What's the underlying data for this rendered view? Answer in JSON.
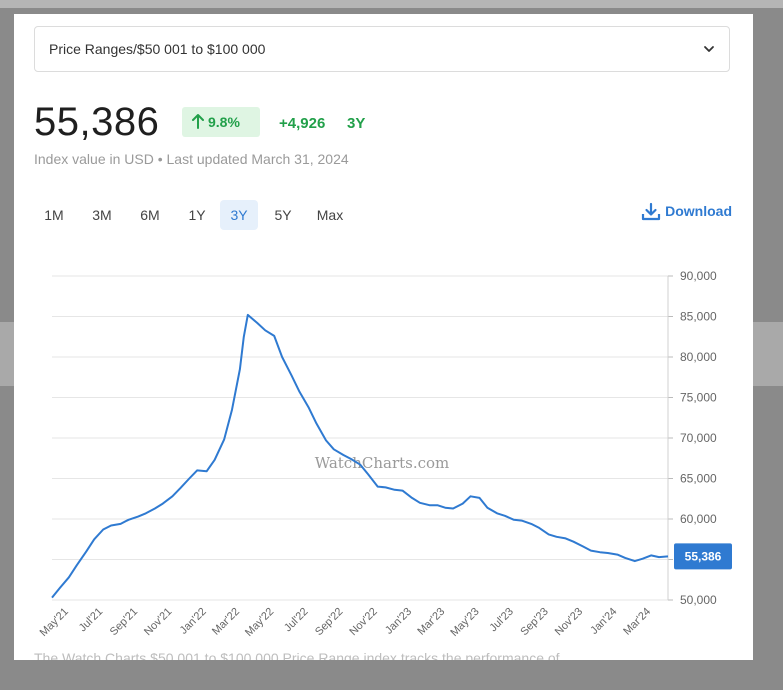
{
  "selector": {
    "label": "Price Ranges/$50 001 to $100 000"
  },
  "summary": {
    "value": "55,386",
    "pct_change": "9.8%",
    "abs_change": "+4,926",
    "period": "3Y",
    "subtitle": "Index value in USD • Last updated March 31, 2024"
  },
  "ranges": [
    {
      "label": "1M",
      "active": false
    },
    {
      "label": "3M",
      "active": false
    },
    {
      "label": "6M",
      "active": false
    },
    {
      "label": "1Y",
      "active": false
    },
    {
      "label": "3Y",
      "active": true
    },
    {
      "label": "5Y",
      "active": false
    },
    {
      "label": "Max",
      "active": false
    }
  ],
  "download_label": "Download",
  "footer_text": "The Watch Charts $50 001 to $100 000 Price Range index tracks the performance of…",
  "colors": {
    "line": "#2f7ad1",
    "badge_bg": "#dff5e3",
    "positive": "#22a04a",
    "accent": "#2f7ad1"
  },
  "icons": {
    "chevron": "chevron-down-icon",
    "arrow": "arrow-up-icon",
    "download": "download-icon"
  },
  "chart_data": {
    "type": "line",
    "watermark": "WatchCharts.com",
    "y_ticks": [
      "90,000",
      "85,000",
      "80,000",
      "75,000",
      "70,000",
      "65,000",
      "60,000",
      "55,000",
      "50,000"
    ],
    "ylim": [
      50000,
      90000
    ],
    "x_ticks": [
      "May'21",
      "Jul'21",
      "Sep'21",
      "Nov'21",
      "Jan'22",
      "Mar'22",
      "May'22",
      "Jul'22",
      "Sep'22",
      "Nov'22",
      "Jan'23",
      "Mar'23",
      "May'23",
      "Jul'23",
      "Sep'23",
      "Nov'23",
      "Jan'24",
      "Mar'24"
    ],
    "last_value_label": "55,386",
    "series": [
      {
        "x": [
          "2021-04-01",
          "2021-04-15",
          "2021-05-01",
          "2021-05-15",
          "2021-06-01",
          "2021-06-15",
          "2021-07-01",
          "2021-07-15",
          "2021-08-01",
          "2021-08-15",
          "2021-09-01",
          "2021-09-15",
          "2021-10-01",
          "2021-10-15",
          "2021-11-01",
          "2021-11-15",
          "2021-12-01",
          "2021-12-15",
          "2022-01-01",
          "2022-01-15",
          "2022-02-01",
          "2022-02-15",
          "2022-03-01",
          "2022-03-08",
          "2022-03-15",
          "2022-04-01",
          "2022-04-15",
          "2022-05-01",
          "2022-05-15",
          "2022-06-01",
          "2022-06-15",
          "2022-07-01",
          "2022-07-15",
          "2022-08-01",
          "2022-08-15",
          "2022-09-01",
          "2022-09-15",
          "2022-10-01",
          "2022-10-15",
          "2022-11-01",
          "2022-11-15",
          "2022-12-01",
          "2022-12-15",
          "2023-01-01",
          "2023-01-15",
          "2023-02-01",
          "2023-02-15",
          "2023-03-01",
          "2023-03-15",
          "2023-04-01",
          "2023-04-15",
          "2023-05-01",
          "2023-05-15",
          "2023-06-01",
          "2023-06-15",
          "2023-07-01",
          "2023-07-15",
          "2023-08-01",
          "2023-08-15",
          "2023-09-01",
          "2023-09-15",
          "2023-10-01",
          "2023-10-15",
          "2023-11-01",
          "2023-11-15",
          "2023-12-01",
          "2023-12-15",
          "2024-01-01",
          "2024-01-15",
          "2024-02-01",
          "2024-02-15",
          "2024-03-01",
          "2024-03-15",
          "2024-03-31"
        ],
        "y": [
          50300,
          51500,
          52800,
          54300,
          56000,
          57500,
          58700,
          59200,
          59400,
          59900,
          60300,
          60700,
          61300,
          61900,
          62800,
          63800,
          65000,
          66000,
          65900,
          67300,
          69800,
          73500,
          78500,
          82500,
          85200,
          84200,
          83300,
          82600,
          80000,
          77700,
          75700,
          73800,
          71800,
          69700,
          68600,
          67900,
          67400,
          66700,
          65500,
          64000,
          63900,
          63600,
          63500,
          62600,
          62000,
          61700,
          61700,
          61400,
          61300,
          61900,
          62800,
          62600,
          61400,
          60700,
          60400,
          59900,
          59800,
          59400,
          58900,
          58100,
          57800,
          57600,
          57200,
          56600,
          56100,
          55900,
          55800,
          55600,
          55200,
          54800,
          55100,
          55500,
          55300,
          55386
        ]
      }
    ]
  }
}
